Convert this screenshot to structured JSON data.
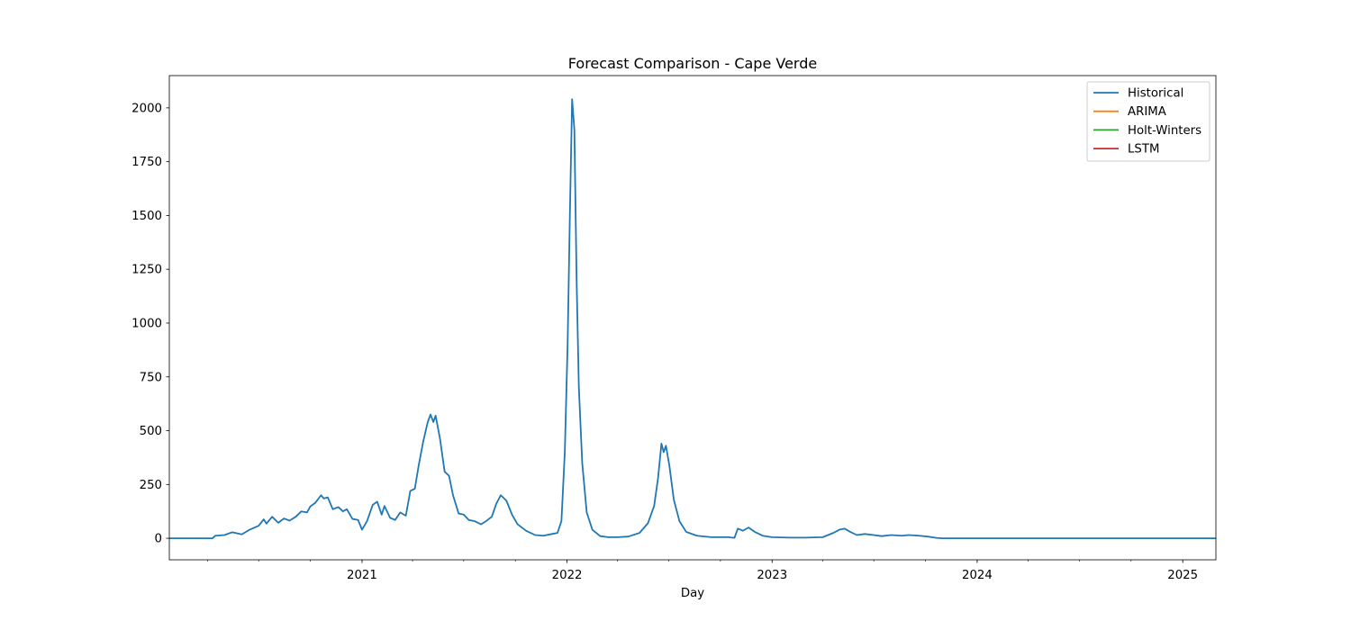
{
  "chart_data": {
    "type": "line",
    "title": "Forecast Comparison - Cape Verde",
    "xlabel": "Day",
    "ylabel": "",
    "xlim": [
      "2020-01-24",
      "2025-03-01"
    ],
    "ylim": [
      -100,
      2150
    ],
    "grid": false,
    "legend_position": "top-right",
    "x_ticks": [
      {
        "date": "2021-01-01",
        "label": "2021"
      },
      {
        "date": "2022-01-01",
        "label": "2022"
      },
      {
        "date": "2023-01-01",
        "label": "2023"
      },
      {
        "date": "2024-01-01",
        "label": "2024"
      },
      {
        "date": "2025-01-01",
        "label": "2025"
      }
    ],
    "y_ticks": [
      0,
      250,
      500,
      750,
      1000,
      1250,
      1500,
      1750,
      2000
    ],
    "series": [
      {
        "name": "Historical",
        "color": "#1f77b4",
        "points": [
          [
            "2020-01-24",
            0
          ],
          [
            "2020-03-15",
            0
          ],
          [
            "2020-04-10",
            0
          ],
          [
            "2020-04-15",
            12
          ],
          [
            "2020-05-01",
            15
          ],
          [
            "2020-05-15",
            28
          ],
          [
            "2020-06-01",
            18
          ],
          [
            "2020-06-15",
            40
          ],
          [
            "2020-07-01",
            58
          ],
          [
            "2020-07-10",
            88
          ],
          [
            "2020-07-15",
            68
          ],
          [
            "2020-07-25",
            100
          ],
          [
            "2020-08-05",
            72
          ],
          [
            "2020-08-15",
            92
          ],
          [
            "2020-08-25",
            82
          ],
          [
            "2020-09-05",
            100
          ],
          [
            "2020-09-15",
            125
          ],
          [
            "2020-09-25",
            120
          ],
          [
            "2020-10-01",
            148
          ],
          [
            "2020-10-10",
            165
          ],
          [
            "2020-10-20",
            200
          ],
          [
            "2020-10-25",
            185
          ],
          [
            "2020-11-01",
            190
          ],
          [
            "2020-11-10",
            135
          ],
          [
            "2020-11-20",
            145
          ],
          [
            "2020-11-28",
            125
          ],
          [
            "2020-12-05",
            135
          ],
          [
            "2020-12-15",
            90
          ],
          [
            "2020-12-25",
            85
          ],
          [
            "2021-01-01",
            40
          ],
          [
            "2021-01-10",
            80
          ],
          [
            "2021-01-20",
            155
          ],
          [
            "2021-01-28",
            170
          ],
          [
            "2021-02-05",
            110
          ],
          [
            "2021-02-10",
            150
          ],
          [
            "2021-02-20",
            95
          ],
          [
            "2021-03-01",
            85
          ],
          [
            "2021-03-10",
            120
          ],
          [
            "2021-03-20",
            105
          ],
          [
            "2021-03-28",
            220
          ],
          [
            "2021-04-05",
            230
          ],
          [
            "2021-04-12",
            340
          ],
          [
            "2021-04-20",
            450
          ],
          [
            "2021-04-28",
            540
          ],
          [
            "2021-05-03",
            575
          ],
          [
            "2021-05-08",
            540
          ],
          [
            "2021-05-12",
            570
          ],
          [
            "2021-05-20",
            460
          ],
          [
            "2021-05-28",
            310
          ],
          [
            "2021-06-05",
            290
          ],
          [
            "2021-06-12",
            200
          ],
          [
            "2021-06-22",
            115
          ],
          [
            "2021-07-01",
            110
          ],
          [
            "2021-07-10",
            85
          ],
          [
            "2021-07-20",
            80
          ],
          [
            "2021-08-01",
            65
          ],
          [
            "2021-08-10",
            80
          ],
          [
            "2021-08-20",
            100
          ],
          [
            "2021-08-28",
            160
          ],
          [
            "2021-09-05",
            200
          ],
          [
            "2021-09-15",
            175
          ],
          [
            "2021-09-25",
            110
          ],
          [
            "2021-10-05",
            65
          ],
          [
            "2021-10-20",
            35
          ],
          [
            "2021-11-05",
            15
          ],
          [
            "2021-11-20",
            12
          ],
          [
            "2021-12-05",
            20
          ],
          [
            "2021-12-15",
            25
          ],
          [
            "2021-12-22",
            80
          ],
          [
            "2021-12-28",
            400
          ],
          [
            "2022-01-02",
            900
          ],
          [
            "2022-01-06",
            1500
          ],
          [
            "2022-01-10",
            2040
          ],
          [
            "2022-01-14",
            1900
          ],
          [
            "2022-01-18",
            1200
          ],
          [
            "2022-01-22",
            700
          ],
          [
            "2022-01-28",
            350
          ],
          [
            "2022-02-05",
            120
          ],
          [
            "2022-02-15",
            40
          ],
          [
            "2022-03-01",
            10
          ],
          [
            "2022-03-15",
            5
          ],
          [
            "2022-04-01",
            5
          ],
          [
            "2022-04-20",
            8
          ],
          [
            "2022-05-10",
            25
          ],
          [
            "2022-05-25",
            70
          ],
          [
            "2022-06-05",
            150
          ],
          [
            "2022-06-12",
            280
          ],
          [
            "2022-06-18",
            440
          ],
          [
            "2022-06-22",
            400
          ],
          [
            "2022-06-26",
            430
          ],
          [
            "2022-07-02",
            340
          ],
          [
            "2022-07-10",
            180
          ],
          [
            "2022-07-20",
            80
          ],
          [
            "2022-08-01",
            30
          ],
          [
            "2022-08-20",
            12
          ],
          [
            "2022-09-15",
            5
          ],
          [
            "2022-10-15",
            5
          ],
          [
            "2022-10-26",
            2
          ],
          [
            "2022-11-01",
            45
          ],
          [
            "2022-11-10",
            35
          ],
          [
            "2022-11-20",
            50
          ],
          [
            "2022-12-01",
            30
          ],
          [
            "2022-12-15",
            12
          ],
          [
            "2023-01-01",
            5
          ],
          [
            "2023-02-01",
            3
          ],
          [
            "2023-03-01",
            3
          ],
          [
            "2023-04-01",
            5
          ],
          [
            "2023-04-20",
            25
          ],
          [
            "2023-05-01",
            40
          ],
          [
            "2023-05-10",
            45
          ],
          [
            "2023-05-20",
            30
          ],
          [
            "2023-06-01",
            15
          ],
          [
            "2023-06-15",
            20
          ],
          [
            "2023-07-01",
            15
          ],
          [
            "2023-07-15",
            10
          ],
          [
            "2023-08-01",
            15
          ],
          [
            "2023-08-20",
            12
          ],
          [
            "2023-09-01",
            15
          ],
          [
            "2023-09-20",
            12
          ],
          [
            "2023-10-05",
            8
          ],
          [
            "2023-10-20",
            2
          ],
          [
            "2023-11-01",
            0
          ],
          [
            "2024-06-01",
            0
          ],
          [
            "2025-03-01",
            0
          ]
        ]
      },
      {
        "name": "ARIMA",
        "color": "#ff7f0e",
        "points": []
      },
      {
        "name": "Holt-Winters",
        "color": "#2ca02c",
        "points": []
      },
      {
        "name": "LSTM",
        "color": "#d62728",
        "points": []
      }
    ]
  }
}
